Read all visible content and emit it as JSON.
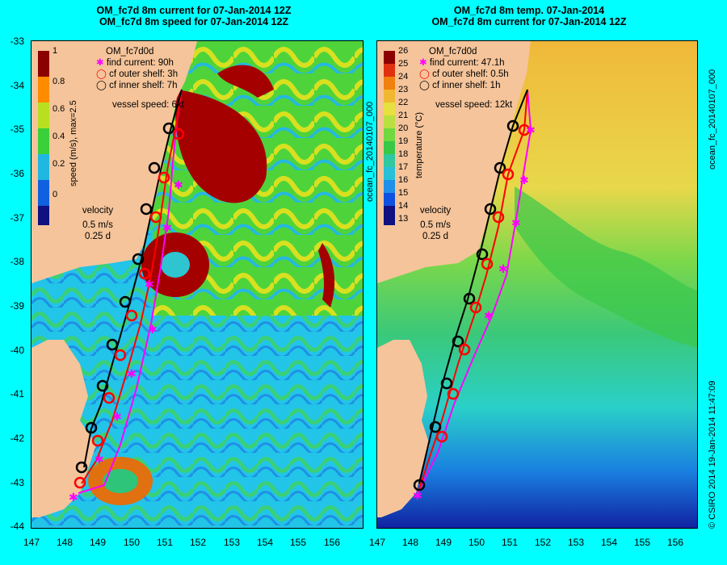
{
  "left": {
    "title_line1": "OM_fc7d 8m current for 07-Jan-2014 12Z",
    "title_line2": "OM_fc7d 8m speed for 07-Jan-2014 12Z",
    "model": "OM_fc7d0d",
    "legend": [
      "find current: 90h",
      "cf outer shelf: 3h",
      "cf inner shelf: 7h"
    ],
    "vessel_speed": "vessel speed: 6kt",
    "colorbar_title": "speed (m/s), max=2.5",
    "colorbar_ticks": [
      "1",
      "0.8",
      "0.6",
      "0.4",
      "0.2",
      "0"
    ],
    "velocity_title": "velocity",
    "velocity_scale": "0.5 m/s",
    "velocity_time": "0.25 d"
  },
  "right": {
    "title_line1": "OM_fc7d 8m temp. 07-Jan-2014",
    "title_line2": "OM_fc7d 8m current for 07-Jan-2014 12Z",
    "model": "OM_fc7d0d",
    "legend": [
      "find current: 47.1h",
      "cf outer shelf: 0.5h",
      "cf inner shelf: 1h"
    ],
    "vessel_speed": "vessel speed: 12kt",
    "colorbar_title": "temperature (°C)",
    "colorbar_ticks": [
      "26",
      "25",
      "24",
      "23",
      "22",
      "21",
      "20",
      "19",
      "18",
      "17",
      "16",
      "15",
      "14",
      "13"
    ],
    "velocity_title": "velocity",
    "velocity_scale": "0.5 m/s",
    "velocity_time": "0.25 d",
    "side_label_left": "ocean_fc_20140107_000",
    "side_label_right": "ocean_fc_20140107_000",
    "footer": "© CSIRO 2014  19-Jan-2014 11:47:09"
  },
  "axes": {
    "lat_ticks": [
      "-33",
      "-34",
      "-35",
      "-36",
      "-37",
      "-38",
      "-39",
      "-40",
      "-41",
      "-42",
      "-43",
      "-44"
    ],
    "lon_ticks": [
      "147",
      "148",
      "149",
      "150",
      "151",
      "152",
      "153",
      "154",
      "155",
      "156"
    ]
  },
  "colors": {
    "background": "#00ffff",
    "land": "#f5c49a",
    "find_current": "#ff00ff",
    "outer_shelf": "#ff0000",
    "inner_shelf": "#000000"
  }
}
